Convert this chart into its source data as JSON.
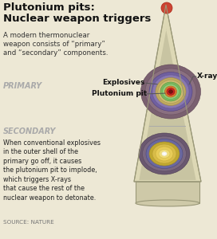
{
  "title": "Plutonium pits:\nNuclear weapon triggers",
  "subtitle": "A modern thermonuclear\nweapon consists of “primary”\nand “secondary” components.",
  "primary_label": "PRIMARY",
  "secondary_label": "SECONDARY",
  "label_explosives": "Explosives",
  "label_plutonium": "Plutonium pit",
  "label_xrays": "X-rays",
  "body_text": "When conventional explosives\nin the outer shell of the\nprimary go off, it causes\nthe plutonium pit to implode,\nwhich triggers X-rays\nthat cause the rest of the\nnuclear weapon to detonate.",
  "source_text": "SOURCE: NATURE",
  "bg_color": "#ede8d5",
  "title_color": "#111111",
  "primary_label_color": "#aaaaaa",
  "secondary_label_color": "#aaaaaa",
  "warhead_fill": "#ddd8b5",
  "warhead_edge": "#9a9878",
  "tip_fill": "#cc4433",
  "tip_edge": "#aa2211",
  "base_fill": "#cec9a8",
  "base_edge": "#9a9878",
  "divider_color": "#aaaaaa",
  "arrow_color": "#555555",
  "label_color": "#111111",
  "source_color": "#777777"
}
